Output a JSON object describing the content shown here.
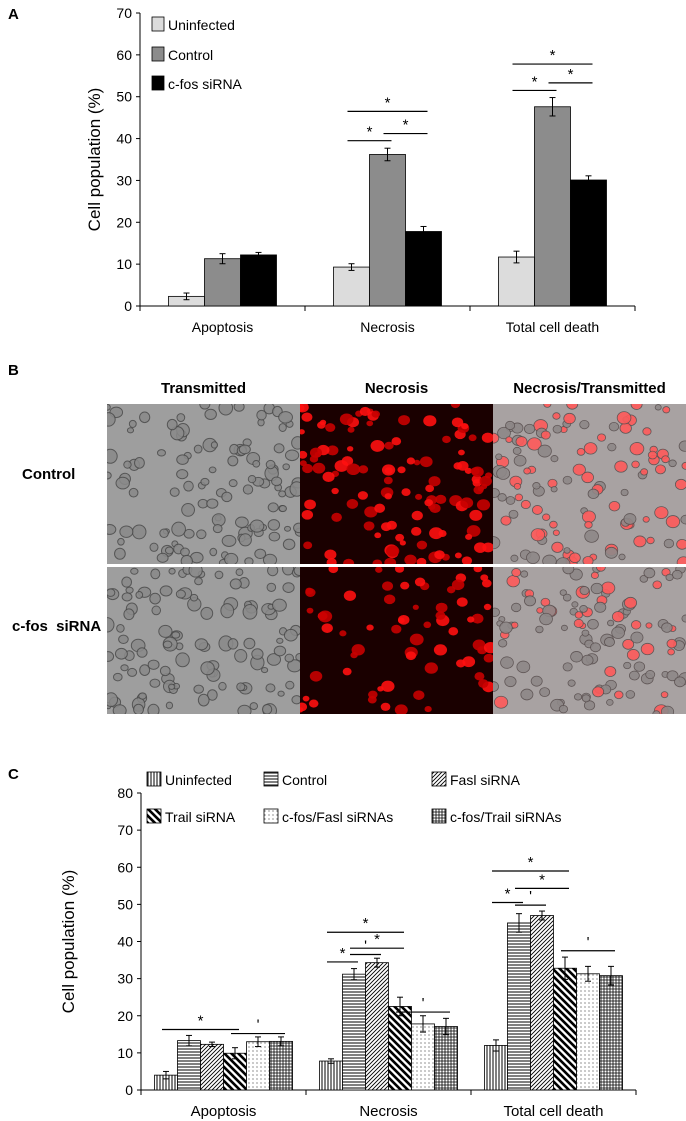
{
  "panels": {
    "a": {
      "letter": "A"
    },
    "b": {
      "letter": "B",
      "columns": [
        "Transmitted",
        "Necrosis",
        "Necrosis/Transmitted"
      ],
      "rows": [
        "Control",
        "c-fos  siRNA"
      ]
    },
    "c": {
      "letter": "C"
    }
  },
  "chart_data": [
    {
      "type": "bar",
      "title": "",
      "xlabel": "",
      "ylabel": "Cell population (%)",
      "ylim": [
        0,
        70
      ],
      "yticks": [
        0,
        10,
        20,
        30,
        40,
        50,
        60,
        70
      ],
      "categories": [
        "Apoptosis",
        "Necrosis",
        "Total cell death"
      ],
      "legend_position": "top-left",
      "series": [
        {
          "name": "Uninfected",
          "values": [
            2.3,
            9.3,
            11.7
          ],
          "errors": [
            0.8,
            0.8,
            1.4
          ],
          "color": "#dcdcdc"
        },
        {
          "name": "Control",
          "values": [
            11.3,
            36.2,
            47.6
          ],
          "errors": [
            1.2,
            1.5,
            2.2
          ],
          "color": "#8c8c8c"
        },
        {
          "name": "c-fos siRNA",
          "values": [
            12.2,
            17.8,
            30.1
          ],
          "errors": [
            0.6,
            1.2,
            1.0
          ],
          "color": "#000000"
        }
      ],
      "annotations": [
        {
          "text": "*",
          "category": "Necrosis",
          "from": 0,
          "to": 1,
          "y": 39.5
        },
        {
          "text": "*",
          "category": "Necrosis",
          "from": 1,
          "to": 2,
          "y": 41.2
        },
        {
          "text": "*",
          "category": "Necrosis",
          "from": 0,
          "to": 2,
          "y": 46.5
        },
        {
          "text": "*",
          "category": "Total cell death",
          "from": 0,
          "to": 1,
          "y": 51.5
        },
        {
          "text": "*",
          "category": "Total cell death",
          "from": 1,
          "to": 2,
          "y": 53.3
        },
        {
          "text": "*",
          "category": "Total cell death",
          "from": 0,
          "to": 2,
          "y": 57.8
        }
      ]
    },
    {
      "type": "bar",
      "title": "",
      "xlabel": "",
      "ylabel": "Cell population (%)",
      "ylim": [
        0,
        80
      ],
      "yticks": [
        0,
        10,
        20,
        30,
        40,
        50,
        60,
        70,
        80
      ],
      "categories": [
        "Apoptosis",
        "Necrosis",
        "Total cell death"
      ],
      "legend_position": "top",
      "series": [
        {
          "name": "Uninfected",
          "pattern": "vlines",
          "values": [
            4.0,
            7.8,
            12.0
          ],
          "errors": [
            1.0,
            0.6,
            1.5
          ]
        },
        {
          "name": "Control",
          "pattern": "hlines",
          "values": [
            13.3,
            31.2,
            45.0
          ],
          "errors": [
            1.4,
            1.5,
            2.5
          ]
        },
        {
          "name": "Fasl siRNA",
          "pattern": "diag",
          "values": [
            12.3,
            34.3,
            47.0
          ],
          "errors": [
            0.6,
            1.2,
            1.2
          ]
        },
        {
          "name": "Trail siRNA",
          "pattern": "thickdiag",
          "values": [
            9.9,
            22.5,
            32.8
          ],
          "errors": [
            1.5,
            2.5,
            3.0
          ]
        },
        {
          "name": "c-fos/Fasl siRNAs",
          "pattern": "dots",
          "values": [
            13.0,
            17.8,
            31.3
          ],
          "errors": [
            1.3,
            2.2,
            2.0
          ]
        },
        {
          "name": "c-fos/Trail siRNAs",
          "pattern": "grid",
          "values": [
            13.1,
            17.1,
            30.8
          ],
          "errors": [
            1.2,
            2.2,
            2.5
          ]
        }
      ],
      "annotations": [
        {
          "text": "*",
          "category": "Apoptosis",
          "from": 0,
          "to": 3,
          "y": 16.3
        },
        {
          "text": "'",
          "category": "Apoptosis",
          "from": 3,
          "to": 5,
          "y": 15.2
        },
        {
          "text": "*",
          "category": "Necrosis",
          "from": 0,
          "to": 1,
          "y": 34.5
        },
        {
          "text": "'",
          "category": "Necrosis",
          "from": 1,
          "to": 2,
          "y": 36.5
        },
        {
          "text": "*",
          "category": "Necrosis",
          "from": 1,
          "to": 3,
          "y": 38.2
        },
        {
          "text": "*",
          "category": "Necrosis",
          "from": 0,
          "to": 3,
          "y": 42.5
        },
        {
          "text": "'",
          "category": "Necrosis",
          "from": 3,
          "to": 5,
          "y": 21.0
        },
        {
          "text": "*",
          "category": "Total cell death",
          "from": 0,
          "to": 1,
          "y": 50.5
        },
        {
          "text": "'",
          "category": "Total cell death",
          "from": 1,
          "to": 2,
          "y": 49.8
        },
        {
          "text": "*",
          "category": "Total cell death",
          "from": 1,
          "to": 3,
          "y": 54.3
        },
        {
          "text": "*",
          "category": "Total cell death",
          "from": 0,
          "to": 3,
          "y": 59.0
        },
        {
          "text": "'",
          "category": "Total cell death",
          "from": 3,
          "to": 5,
          "y": 37.5
        }
      ]
    }
  ]
}
